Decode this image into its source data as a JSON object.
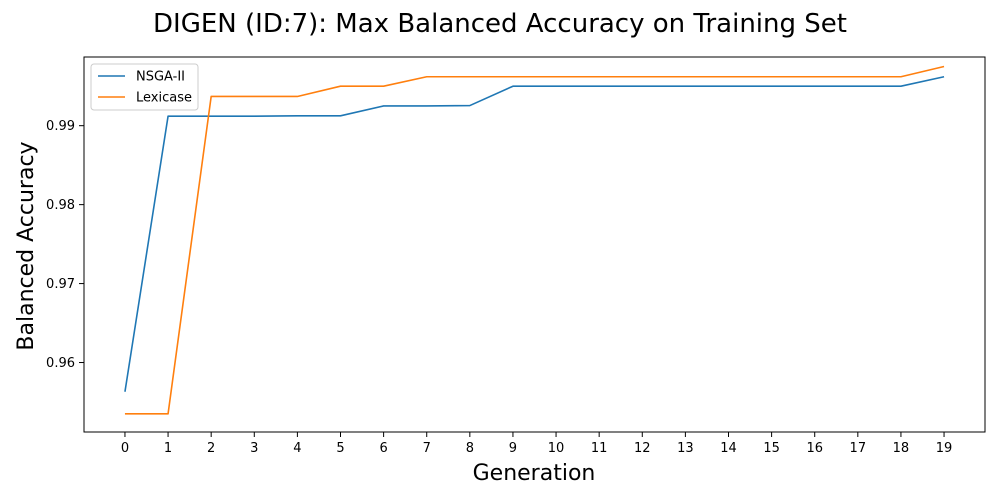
{
  "chart_data": {
    "type": "line",
    "title": "DIGEN (ID:7): Max Balanced Accuracy on Training Set",
    "xlabel": "Generation",
    "ylabel": "Balanced Accuracy",
    "x": [
      0,
      1,
      2,
      3,
      4,
      5,
      6,
      7,
      8,
      9,
      10,
      11,
      12,
      13,
      14,
      15,
      16,
      17,
      18,
      19
    ],
    "x_ticks": [
      "0",
      "1",
      "2",
      "3",
      "4",
      "5",
      "6",
      "7",
      "8",
      "9",
      "10",
      "11",
      "12",
      "13",
      "14",
      "15",
      "16",
      "17",
      "18",
      "19"
    ],
    "y_ticks": [
      "0.96",
      "0.97",
      "0.98",
      "0.99"
    ],
    "y_tick_values": [
      0.96,
      0.97,
      0.98,
      0.99
    ],
    "xlim": [
      -0.95,
      19.95
    ],
    "ylim": [
      0.9512,
      0.9987
    ],
    "grid": false,
    "legend_position": "top-left",
    "series": [
      {
        "name": "NSGA-II",
        "color": "#1f77b4",
        "values": [
          0.9563,
          0.9912,
          0.9912,
          0.9912,
          0.99125,
          0.99125,
          0.9925,
          0.9925,
          0.99255,
          0.995,
          0.995,
          0.995,
          0.995,
          0.995,
          0.995,
          0.995,
          0.995,
          0.995,
          0.995,
          0.9962
        ]
      },
      {
        "name": "Lexicase",
        "color": "#ff7f0e",
        "values": [
          0.9535,
          0.9535,
          0.9937,
          0.9937,
          0.9937,
          0.995,
          0.995,
          0.9962,
          0.9962,
          0.9962,
          0.9962,
          0.9962,
          0.9962,
          0.9962,
          0.9962,
          0.9962,
          0.9962,
          0.9962,
          0.9962,
          0.9975
        ]
      }
    ]
  }
}
